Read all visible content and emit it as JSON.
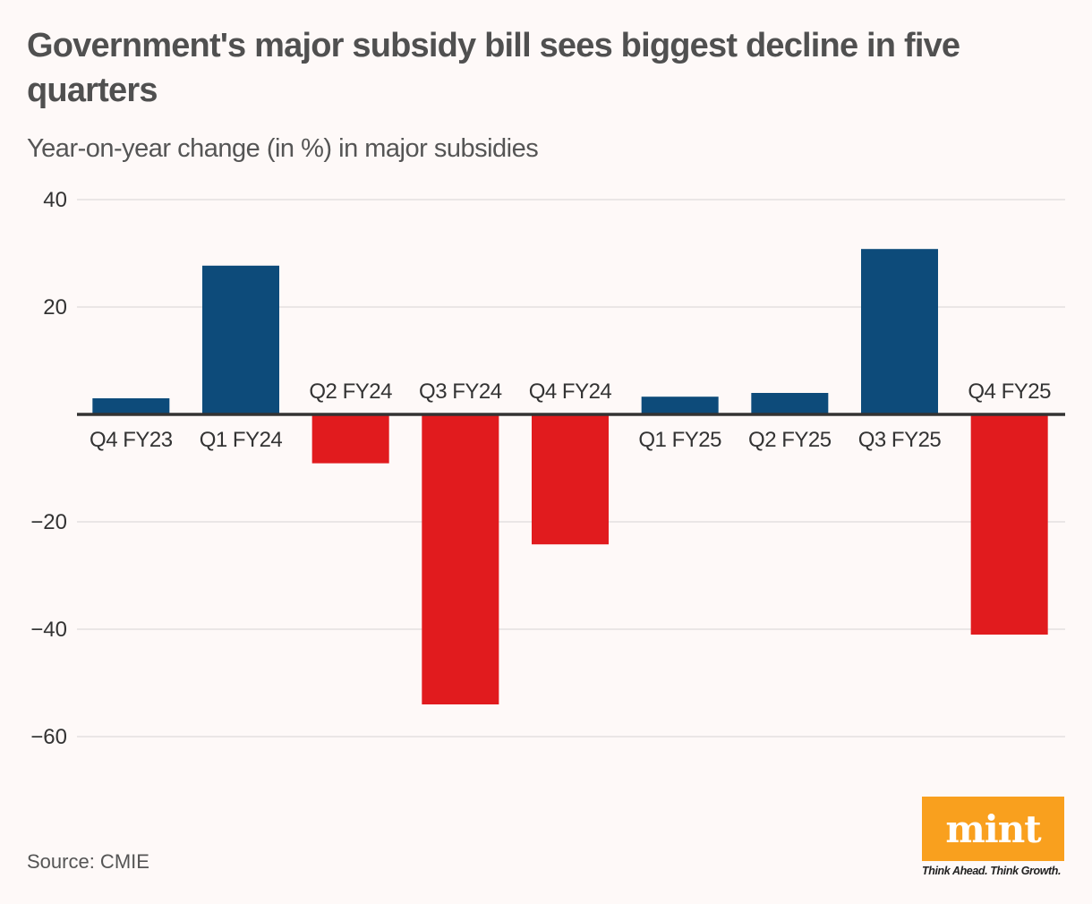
{
  "header": {
    "title": "Government's major subsidy bill sees biggest decline in five quarters",
    "subtitle": "Year-on-year change (in %) in major subsidies"
  },
  "footer": {
    "source": "Source: CMIE",
    "logo_text": "mint",
    "tagline": "Think Ahead. Think Growth."
  },
  "colors": {
    "positive": "#0d4b7a",
    "negative": "#e11b1e",
    "gridline": "#e3e0df",
    "axis": "#333333",
    "background": "#fef9f8",
    "logo_bg": "#f9a01e"
  },
  "chart_data": {
    "type": "bar",
    "title": "Government's major subsidy bill sees biggest decline in five quarters",
    "subtitle": "Year-on-year change (in %) in major subsidies",
    "xlabel": "",
    "ylabel": "",
    "categories": [
      "Q4 FY23",
      "Q1 FY24",
      "Q2 FY24",
      "Q3 FY24",
      "Q4 FY24",
      "Q1 FY25",
      "Q2 FY25",
      "Q3 FY25",
      "Q4 FY25"
    ],
    "values": [
      3.0,
      27.7,
      -9.1,
      -54.0,
      -24.2,
      3.3,
      4.0,
      30.8,
      -41.0
    ],
    "yticks": [
      40,
      20,
      -20,
      -40,
      -60
    ],
    "ytick_labels": [
      "40",
      "20",
      "−20",
      "−40",
      "−60"
    ],
    "ylim": [
      -70,
      40
    ],
    "grid": true,
    "legend": "none",
    "source": "Source: CMIE"
  }
}
